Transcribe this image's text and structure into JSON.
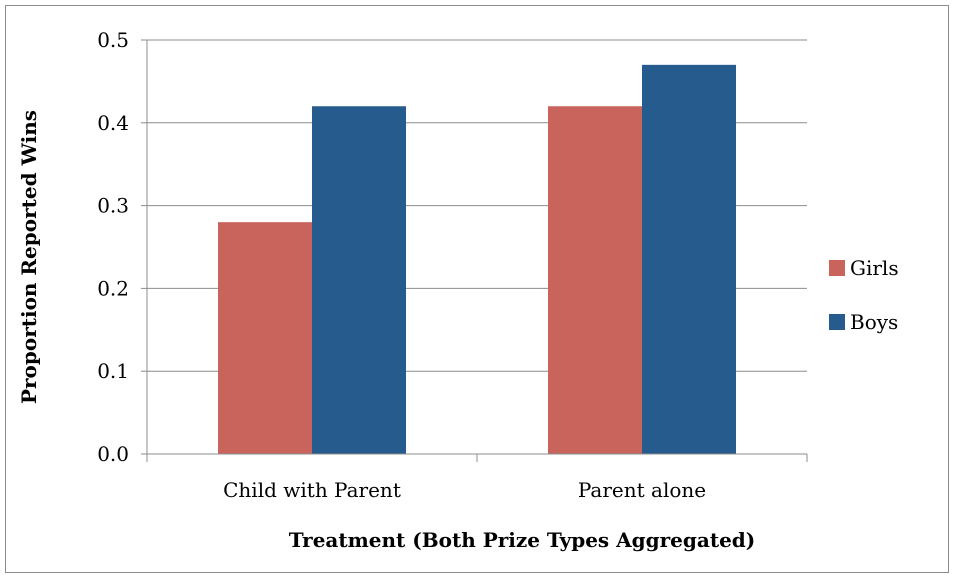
{
  "chart_data": {
    "type": "bar",
    "title": "",
    "xlabel": "Treatment (Both Prize Types Aggregated)",
    "ylabel": "Proportion Reported Wins",
    "categories": [
      "Child with Parent",
      "Parent alone"
    ],
    "series": [
      {
        "name": "Girls",
        "values": [
          0.28,
          0.42
        ],
        "color": "#c9645c"
      },
      {
        "name": "Boys",
        "values": [
          0.42,
          0.47
        ],
        "color": "#265b8e"
      }
    ],
    "ylim": [
      0,
      0.5
    ],
    "yticks": [
      "0.0",
      "0.1",
      "0.2",
      "0.3",
      "0.4",
      "0.5"
    ],
    "grid": true,
    "legend_position": "right"
  }
}
